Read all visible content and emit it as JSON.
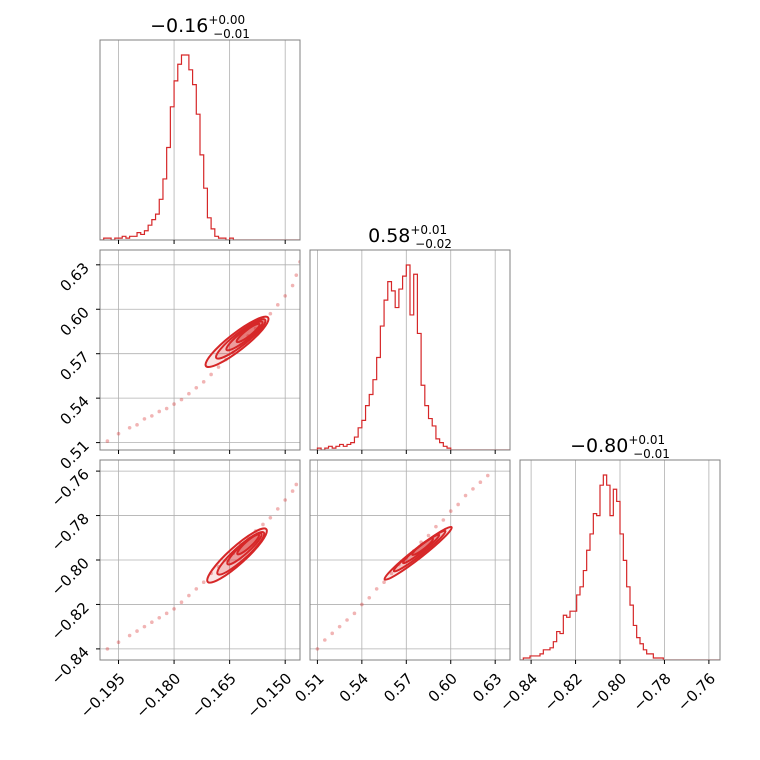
{
  "chart_data": {
    "type": "corner",
    "color": "#d62728",
    "grid": true,
    "parameters": [
      {
        "title": {
          "median": "−0.16",
          "plus": "+0.00",
          "minus": "−0.01"
        },
        "range": [
          -0.2,
          -0.146
        ],
        "ticks": [
          -0.195,
          -0.18,
          -0.165,
          -0.15
        ],
        "tick_labels": [
          "−0.195",
          "−0.180",
          "−0.165",
          "−0.150"
        ],
        "histogram": {
          "bin_edges_start": -0.2,
          "bin_width": 0.001,
          "counts": [
            0,
            1,
            1,
            0,
            1,
            1,
            2,
            1,
            2,
            2,
            4,
            3,
            5,
            8,
            11,
            14,
            22,
            33,
            50,
            72,
            86,
            95,
            100,
            100,
            92,
            84,
            68,
            46,
            28,
            12,
            6,
            2,
            1,
            1,
            0,
            1,
            0,
            0,
            0,
            0,
            0,
            0,
            0,
            0,
            0,
            0,
            0,
            0,
            0,
            0,
            0,
            0,
            0,
            0
          ]
        }
      },
      {
        "title": {
          "median": "0.58",
          "plus": "+0.01",
          "minus": "−0.02"
        },
        "range": [
          0.505,
          0.64
        ],
        "ticks": [
          0.51,
          0.54,
          0.57,
          0.6,
          0.63
        ],
        "tick_labels": [
          "0.51",
          "0.54",
          "0.57",
          "0.60",
          "0.63"
        ],
        "histogram": {
          "bin_edges_start": 0.505,
          "bin_width": 0.0025,
          "counts": [
            0,
            0,
            1,
            0,
            1,
            2,
            1,
            2,
            3,
            2,
            3,
            4,
            7,
            12,
            16,
            24,
            30,
            38,
            50,
            67,
            81,
            91,
            86,
            77,
            87,
            94,
            100,
            73,
            95,
            63,
            35,
            24,
            17,
            13,
            6,
            4,
            2,
            1,
            0,
            0,
            0,
            0,
            0,
            0,
            0,
            0,
            0,
            0,
            0,
            0,
            0,
            0,
            0,
            0
          ]
        }
      },
      {
        "title": {
          "median": "−0.80",
          "plus": "+0.01",
          "minus": "−0.01"
        },
        "range": [
          -0.845,
          -0.755
        ],
        "ticks": [
          -0.84,
          -0.82,
          -0.8,
          -0.78,
          -0.76
        ],
        "tick_labels": [
          "−0.84",
          "−0.82",
          "−0.80",
          "−0.78",
          "−0.76"
        ],
        "histogram": {
          "bin_edges_start": -0.845,
          "bin_width": 0.0015,
          "counts": [
            0,
            1,
            1,
            2,
            2,
            2,
            3,
            5,
            5,
            6,
            9,
            14,
            13,
            22,
            21,
            24,
            24,
            32,
            36,
            44,
            54,
            62,
            72,
            71,
            86,
            91,
            86,
            71,
            84,
            78,
            62,
            49,
            36,
            27,
            17,
            11,
            8,
            5,
            3,
            3,
            1,
            1,
            1,
            0,
            0,
            0,
            0,
            0,
            0,
            0,
            0,
            0,
            0,
            0,
            0,
            0,
            0,
            0,
            0,
            0
          ]
        }
      }
    ],
    "pairs": [
      {
        "x_param": 0,
        "y_param": 1,
        "points": [
          [
            -0.198,
            0.511
          ],
          [
            -0.195,
            0.516
          ],
          [
            -0.192,
            0.52
          ],
          [
            -0.19,
            0.522
          ],
          [
            -0.188,
            0.526
          ],
          [
            -0.186,
            0.528
          ],
          [
            -0.184,
            0.531
          ],
          [
            -0.182,
            0.533
          ],
          [
            -0.18,
            0.536
          ],
          [
            -0.178,
            0.539
          ],
          [
            -0.176,
            0.543
          ],
          [
            -0.174,
            0.547
          ],
          [
            -0.172,
            0.551
          ],
          [
            -0.17,
            0.556
          ],
          [
            -0.168,
            0.561
          ],
          [
            -0.166,
            0.566
          ],
          [
            -0.164,
            0.571
          ],
          [
            -0.162,
            0.576
          ],
          [
            -0.16,
            0.582
          ],
          [
            -0.158,
            0.587
          ],
          [
            -0.156,
            0.592
          ],
          [
            -0.154,
            0.597
          ],
          [
            -0.152,
            0.603
          ],
          [
            -0.15,
            0.609
          ],
          [
            -0.148,
            0.616
          ],
          [
            -0.147,
            0.623
          ],
          [
            -0.146,
            0.632
          ]
        ],
        "contours": [
          {
            "cx": -0.163,
            "cy": 0.578,
            "sx": 0.0095,
            "sy": 0.0045,
            "angle_deg": 38
          },
          {
            "cx": -0.162,
            "cy": 0.58,
            "sx": 0.0075,
            "sy": 0.0032,
            "angle_deg": 38
          },
          {
            "cx": -0.161,
            "cy": 0.582,
            "sx": 0.0055,
            "sy": 0.0022,
            "angle_deg": 38
          },
          {
            "cx": -0.16,
            "cy": 0.584,
            "sx": 0.0035,
            "sy": 0.0013,
            "angle_deg": 38
          }
        ]
      },
      {
        "x_param": 0,
        "y_param": 2,
        "points": [
          [
            -0.198,
            -0.84
          ],
          [
            -0.195,
            -0.837
          ],
          [
            -0.192,
            -0.834
          ],
          [
            -0.19,
            -0.832
          ],
          [
            -0.188,
            -0.83
          ],
          [
            -0.186,
            -0.828
          ],
          [
            -0.184,
            -0.826
          ],
          [
            -0.182,
            -0.824
          ],
          [
            -0.18,
            -0.822
          ],
          [
            -0.178,
            -0.819
          ],
          [
            -0.176,
            -0.816
          ],
          [
            -0.174,
            -0.813
          ],
          [
            -0.172,
            -0.81
          ],
          [
            -0.17,
            -0.806
          ],
          [
            -0.168,
            -0.803
          ],
          [
            -0.166,
            -0.8
          ],
          [
            -0.164,
            -0.797
          ],
          [
            -0.162,
            -0.793
          ],
          [
            -0.16,
            -0.79
          ],
          [
            -0.158,
            -0.787
          ],
          [
            -0.156,
            -0.784
          ],
          [
            -0.154,
            -0.781
          ],
          [
            -0.152,
            -0.777
          ],
          [
            -0.15,
            -0.773
          ],
          [
            -0.148,
            -0.769
          ],
          [
            -0.147,
            -0.766
          ]
        ],
        "contours": [
          {
            "cx": -0.163,
            "cy": -0.798,
            "sx": 0.0095,
            "sy": 0.003,
            "angle_deg": 42
          },
          {
            "cx": -0.162,
            "cy": -0.797,
            "sx": 0.0075,
            "sy": 0.0022,
            "angle_deg": 42
          },
          {
            "cx": -0.161,
            "cy": -0.795,
            "sx": 0.0055,
            "sy": 0.0015,
            "angle_deg": 42
          },
          {
            "cx": -0.16,
            "cy": -0.793,
            "sx": 0.0035,
            "sy": 0.0009,
            "angle_deg": 42
          }
        ]
      },
      {
        "x_param": 1,
        "y_param": 2,
        "points": [
          [
            0.51,
            -0.84
          ],
          [
            0.515,
            -0.836
          ],
          [
            0.52,
            -0.833
          ],
          [
            0.525,
            -0.83
          ],
          [
            0.53,
            -0.827
          ],
          [
            0.535,
            -0.824
          ],
          [
            0.54,
            -0.82
          ],
          [
            0.545,
            -0.817
          ],
          [
            0.55,
            -0.813
          ],
          [
            0.555,
            -0.81
          ],
          [
            0.56,
            -0.806
          ],
          [
            0.565,
            -0.802
          ],
          [
            0.57,
            -0.799
          ],
          [
            0.575,
            -0.796
          ],
          [
            0.58,
            -0.792
          ],
          [
            0.585,
            -0.789
          ],
          [
            0.59,
            -0.785
          ],
          [
            0.595,
            -0.782
          ],
          [
            0.6,
            -0.778
          ],
          [
            0.605,
            -0.775
          ],
          [
            0.61,
            -0.771
          ],
          [
            0.615,
            -0.768
          ],
          [
            0.62,
            -0.765
          ],
          [
            0.625,
            -0.762
          ]
        ],
        "contours": [
          {
            "cx": 0.578,
            "cy": -0.797,
            "sx": 0.026,
            "sy": 0.0012,
            "angle_deg": 38
          },
          {
            "cx": 0.579,
            "cy": -0.796,
            "sx": 0.02,
            "sy": 0.0009,
            "angle_deg": 38
          },
          {
            "cx": 0.58,
            "cy": -0.795,
            "sx": 0.014,
            "sy": 0.0006,
            "angle_deg": 38
          },
          {
            "cx": 0.581,
            "cy": -0.794,
            "sx": 0.008,
            "sy": 0.0004,
            "angle_deg": 38
          }
        ]
      }
    ]
  }
}
